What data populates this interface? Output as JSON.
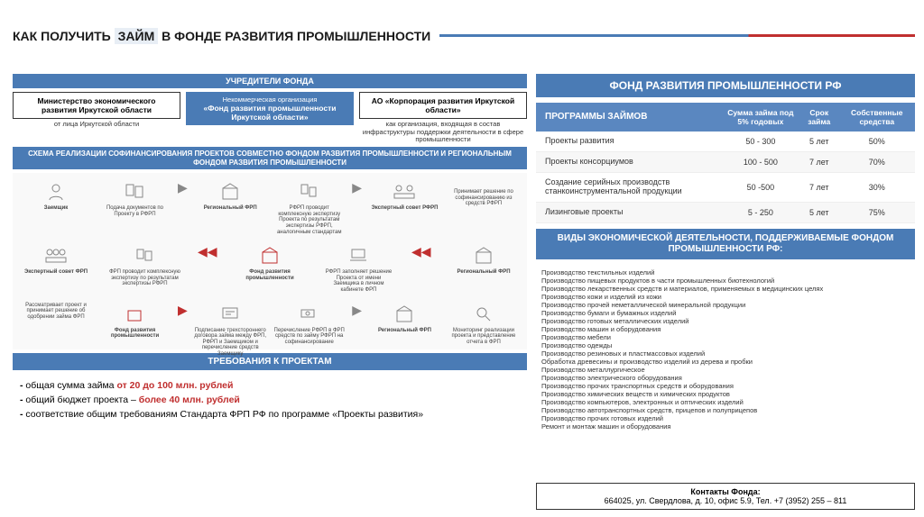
{
  "colors": {
    "primary": "#4a7bb5",
    "accent": "#c02f2f",
    "text": "#333333",
    "bg": "#ffffff",
    "stripe_bg": "#e8eef5"
  },
  "title": {
    "pre": "КАК ПОЛУЧИТЬ",
    "hl": "ЗАЙМ",
    "post": "В ФОНДЕ РАЗВИТИЯ ПРОМЫШЛЕННОСТИ"
  },
  "founders": {
    "header": "УЧРЕДИТЕЛИ ФОНДА",
    "left": {
      "title": "Министерство экономического развития Иркутской области",
      "note": "от лица Иркутской области"
    },
    "mid": {
      "title_pre": "Некоммерческая организация",
      "title": "«Фонд развития промышленности Иркутской области»"
    },
    "right": {
      "title": "АО «Корпорация развития Иркутской области»",
      "note": "как организация, входящая в состав инфраструктуры поддержки деятельности в сфере промышленности"
    }
  },
  "scheme": {
    "header": "СХЕМА РЕАЛИЗАЦИИ СОФИНАНСИРОВАНИЯ ПРОЕКТОВ СОВМЕСТНО ФОНДОМ РАЗВИТИЯ ПРОМЫШЛЕННОСТИ И РЕГИОНАЛЬНЫМ ФОНДОМ РАЗВИТИЯ ПРОМЫШЛЕННОСТИ",
    "nodes": {
      "applicant": "Заемщик",
      "regional": "Региональный ФРП",
      "expert_rfrp": "Экспертный совет РФРП",
      "submit": "Подача документов по Проекту в РФРП",
      "expertise": "РФРП проводит комплексную экспертизу Проекта по результатам экспертизы РФРП, аналогичным стандартам",
      "expert_frp": "Экспертный совет ФРП",
      "frp_check": "ФРП проводит комплексную экспертизу по результатам экспертизы РФРП",
      "frp": "Фонд развития промышленности",
      "frp_req": "РФРП заполняет решение Проекта от имени Заемщика в личном кабинете ФРП",
      "decision": "Принимает решение по софинансированию из средств РФРП",
      "frp2": "Фонд развития промышленности",
      "reg2": "Региональный ФРП",
      "review": "Рассматривает проект и принимает решение об одобрении займа ФРП",
      "sign": "Подписание трехстороннего договора займа между ФРП, РФРП и Заемщиком и перечисление средств Заемщику",
      "transfer": "Перечисление РФРП в ФРП средств по займу РФРП на софинансирование",
      "monitor": "Мониторинг реализации проекта и представление отчета в ФРП"
    }
  },
  "requirements": {
    "header": "ТРЕБОВАНИЯ К ПРОЕКТАМ",
    "items": [
      {
        "pre": "общая сумма займа ",
        "em": "от 20 до 100 млн. рублей",
        "post": ""
      },
      {
        "pre": "общий бюджет проекта – ",
        "em": "более 40 млн. рублей",
        "post": ""
      },
      {
        "pre": "соответствие общим требованиям Стандарта ФРП РФ по программе «Проекты развития»",
        "em": "",
        "post": ""
      }
    ]
  },
  "rf": {
    "header": "ФОНД  РАЗВИТИЯ ПРОМЫШЛЕННОСТИ РФ",
    "cols": [
      "ПРОГРАММЫ ЗАЙМОВ",
      "Сумма займа под 5% годовых",
      "Срок займа",
      "Собственные средства"
    ],
    "rows": [
      [
        "Проекты развития",
        "50 - 300",
        "5 лет",
        "50%"
      ],
      [
        "Проекты консорциумов",
        "100 - 500",
        "7 лет",
        "70%"
      ],
      [
        "Создание серийных производств станкоинструментальной продукции",
        "50 -500",
        "7 лет",
        "30%"
      ],
      [
        "Лизинговые проекты",
        "5 - 250",
        "5 лет",
        "75%"
      ]
    ]
  },
  "types": {
    "header": "ВИДЫ ЭКОНОМИЧЕСКОЙ ДЕЯТЕЛЬНОСТИ, ПОДДЕРЖИВАЕМЫЕ ФОНДОМ ПРОМЫШЛЕННОСТИ РФ:",
    "items": [
      "Производство текстильных изделий",
      "Производство пищевых продуктов в части промышленных биотехнологий",
      "Производство лекарственных средств и материалов, применяемых в медицинских целях",
      "Производство кожи и изделий из кожи",
      "Производство прочей неметаллической минеральной продукции",
      "Производство бумаги и бумажных изделий",
      "Производство готовых металлических изделий",
      "Производство машин и оборудования",
      "Производство мебели",
      "Производство одежды",
      "Производство резиновых и пластмассовых изделий",
      "Обработка древесины и производство изделий из дерева и пробки",
      "Производство металлургическое",
      "Производство электрического оборудования",
      "Производство прочих транспортных средств и оборудования",
      "Производство химических веществ и химических продуктов",
      "Производство компьютеров, электронных и оптических изделий",
      "Производство автотранспортных средств, прицепов и полуприцепов",
      "Производство прочих готовых изделий",
      "Ремонт и монтаж машин и оборудования"
    ]
  },
  "contact": {
    "header": "Контакты Фонда:",
    "line": "664025, ул. Свердлова, д. 10, офис 5.9, Тел. +7 (3952) 255 – 811"
  }
}
